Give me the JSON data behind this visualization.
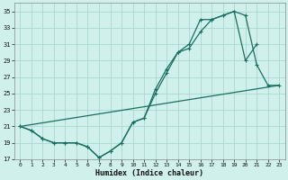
{
  "xlabel": "Humidex (Indice chaleur)",
  "bg_color": "#cff0eb",
  "grid_color": "#aad8d0",
  "line_color": "#1a7060",
  "xlim": [
    -0.5,
    23.5
  ],
  "ylim": [
    17,
    36
  ],
  "xticks": [
    0,
    1,
    2,
    3,
    4,
    5,
    6,
    7,
    8,
    9,
    10,
    11,
    12,
    13,
    14,
    15,
    16,
    17,
    18,
    19,
    20,
    21,
    22,
    23
  ],
  "yticks": [
    17,
    19,
    21,
    23,
    25,
    27,
    29,
    31,
    33,
    35
  ],
  "line1_x": [
    0,
    1,
    2,
    3,
    4,
    5,
    6,
    7,
    8,
    9,
    10,
    11,
    12,
    13,
    14,
    15,
    16,
    17,
    18,
    19,
    20,
    21,
    22,
    23
  ],
  "line1_y": [
    21,
    20.5,
    19.5,
    19,
    19,
    19,
    18.5,
    17.2,
    18,
    19,
    21.5,
    22,
    25.5,
    28,
    30,
    31,
    34,
    34,
    34.5,
    35,
    29,
    31,
    null,
    null
  ],
  "line2_x": [
    0,
    1,
    2,
    3,
    4,
    5,
    6,
    7,
    8,
    9,
    10,
    11,
    12,
    13,
    14,
    15,
    16,
    17,
    18,
    19,
    20,
    21,
    22,
    23
  ],
  "line2_y": [
    21,
    20.5,
    19.5,
    19,
    19,
    19,
    18.5,
    17.2,
    18,
    19,
    21.5,
    22,
    25,
    27.5,
    30,
    30.5,
    32.5,
    34,
    34.5,
    35,
    34.5,
    28.5,
    26,
    26
  ],
  "line3_x": [
    0,
    23
  ],
  "line3_y": [
    21,
    26
  ]
}
